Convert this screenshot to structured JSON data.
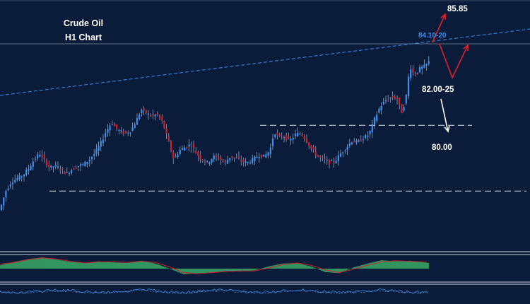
{
  "chart_data": {
    "type": "candlestick",
    "title": "Crude Oil",
    "subtitle": "H1 Chart",
    "colors": {
      "background": "#0b1c3a",
      "bull": "#3d8ff0",
      "bear": "#d0202a",
      "wick": "#9fb4d6",
      "support": "#d8dde8",
      "trendline": "#3d8ff0",
      "arrow_red": "#e0202a",
      "arrow_white": "#ffffff",
      "osc_green": "#3cb46a",
      "osc_line": "#d0202a"
    },
    "price_range": [
      78.2,
      86.1
    ],
    "levels": [
      {
        "label": "85.85",
        "value": 85.85,
        "style": "target"
      },
      {
        "label": "84.10-20",
        "value": 84.15,
        "style": "trendline"
      },
      {
        "label": "82.00-25",
        "value": 82.1,
        "style": "support"
      },
      {
        "label": "80.00",
        "value": 80.0,
        "style": "support"
      }
    ],
    "price_path": [
      [
        0,
        79.4
      ],
      [
        8,
        80.0
      ],
      [
        16,
        80.3
      ],
      [
        24,
        80.4
      ],
      [
        32,
        80.5
      ],
      [
        40,
        80.7
      ],
      [
        48,
        81.0
      ],
      [
        56,
        81.2
      ],
      [
        62,
        81.0
      ],
      [
        70,
        80.75
      ],
      [
        78,
        80.8
      ],
      [
        86,
        80.7
      ],
      [
        94,
        80.55
      ],
      [
        102,
        80.7
      ],
      [
        110,
        80.8
      ],
      [
        118,
        80.85
      ],
      [
        126,
        81.0
      ],
      [
        134,
        81.2
      ],
      [
        142,
        81.5
      ],
      [
        150,
        81.9
      ],
      [
        158,
        82.2
      ],
      [
        164,
        82.0
      ],
      [
        170,
        81.9
      ],
      [
        178,
        81.85
      ],
      [
        186,
        81.95
      ],
      [
        194,
        82.3
      ],
      [
        200,
        82.6
      ],
      [
        206,
        82.5
      ],
      [
        214,
        82.4
      ],
      [
        222,
        82.45
      ],
      [
        230,
        82.2
      ],
      [
        238,
        81.6
      ],
      [
        246,
        81.0
      ],
      [
        254,
        81.3
      ],
      [
        262,
        81.4
      ],
      [
        270,
        81.5
      ],
      [
        278,
        81.2
      ],
      [
        286,
        81.0
      ],
      [
        294,
        80.9
      ],
      [
        302,
        81.1
      ],
      [
        310,
        81.05
      ],
      [
        318,
        80.9
      ],
      [
        326,
        81.1
      ],
      [
        334,
        81.05
      ],
      [
        342,
        80.95
      ],
      [
        350,
        80.9
      ],
      [
        358,
        81.0
      ],
      [
        366,
        81.15
      ],
      [
        374,
        81.1
      ],
      [
        382,
        81.3
      ],
      [
        388,
        81.9
      ],
      [
        394,
        81.7
      ],
      [
        402,
        81.75
      ],
      [
        410,
        81.6
      ],
      [
        418,
        81.8
      ],
      [
        426,
        81.85
      ],
      [
        434,
        81.6
      ],
      [
        442,
        81.3
      ],
      [
        450,
        81.1
      ],
      [
        458,
        81.0
      ],
      [
        466,
        80.9
      ],
      [
        474,
        80.95
      ],
      [
        482,
        81.2
      ],
      [
        490,
        81.4
      ],
      [
        498,
        81.6
      ],
      [
        506,
        81.55
      ],
      [
        514,
        81.7
      ],
      [
        522,
        81.8
      ],
      [
        530,
        82.3
      ],
      [
        538,
        82.7
      ],
      [
        546,
        82.9
      ],
      [
        554,
        83.0
      ],
      [
        562,
        82.95
      ],
      [
        568,
        82.5
      ],
      [
        574,
        82.9
      ],
      [
        580,
        84.0
      ],
      [
        586,
        83.7
      ],
      [
        594,
        83.9
      ],
      [
        602,
        84.0
      ],
      [
        608,
        84.15
      ]
    ],
    "oscillator": [
      [
        0,
        0.3
      ],
      [
        20,
        0.6
      ],
      [
        40,
        0.85
      ],
      [
        60,
        1.0
      ],
      [
        80,
        0.8
      ],
      [
        100,
        0.6
      ],
      [
        120,
        0.5
      ],
      [
        140,
        0.65
      ],
      [
        160,
        0.55
      ],
      [
        180,
        0.5
      ],
      [
        200,
        0.7
      ],
      [
        220,
        0.45
      ],
      [
        240,
        0.0
      ],
      [
        260,
        -0.5
      ],
      [
        280,
        -0.4
      ],
      [
        300,
        -0.35
      ],
      [
        320,
        -0.2
      ],
      [
        340,
        -0.25
      ],
      [
        360,
        -0.15
      ],
      [
        380,
        0.2
      ],
      [
        400,
        0.45
      ],
      [
        420,
        0.5
      ],
      [
        440,
        0.2
      ],
      [
        460,
        -0.3
      ],
      [
        480,
        -0.4
      ],
      [
        500,
        0.1
      ],
      [
        520,
        0.45
      ],
      [
        540,
        0.75
      ],
      [
        560,
        0.65
      ],
      [
        580,
        0.7
      ],
      [
        600,
        0.55
      ],
      [
        607,
        0.5
      ]
    ],
    "osc_line": [
      [
        0,
        0.4
      ],
      [
        20,
        0.55
      ],
      [
        40,
        0.8
      ],
      [
        60,
        0.95
      ],
      [
        80,
        0.85
      ],
      [
        100,
        0.65
      ],
      [
        120,
        0.5
      ],
      [
        140,
        0.6
      ],
      [
        160,
        0.6
      ],
      [
        180,
        0.55
      ],
      [
        200,
        0.65
      ],
      [
        220,
        0.55
      ],
      [
        240,
        0.15
      ],
      [
        260,
        -0.35
      ],
      [
        280,
        -0.45
      ],
      [
        300,
        -0.35
      ],
      [
        320,
        -0.25
      ],
      [
        340,
        -0.2
      ],
      [
        360,
        -0.2
      ],
      [
        380,
        0.05
      ],
      [
        400,
        0.35
      ],
      [
        420,
        0.5
      ],
      [
        440,
        0.3
      ],
      [
        460,
        -0.1
      ],
      [
        480,
        -0.35
      ],
      [
        500,
        -0.05
      ],
      [
        520,
        0.3
      ],
      [
        540,
        0.6
      ],
      [
        560,
        0.7
      ],
      [
        580,
        0.65
      ],
      [
        600,
        0.6
      ],
      [
        607,
        0.55
      ]
    ]
  }
}
